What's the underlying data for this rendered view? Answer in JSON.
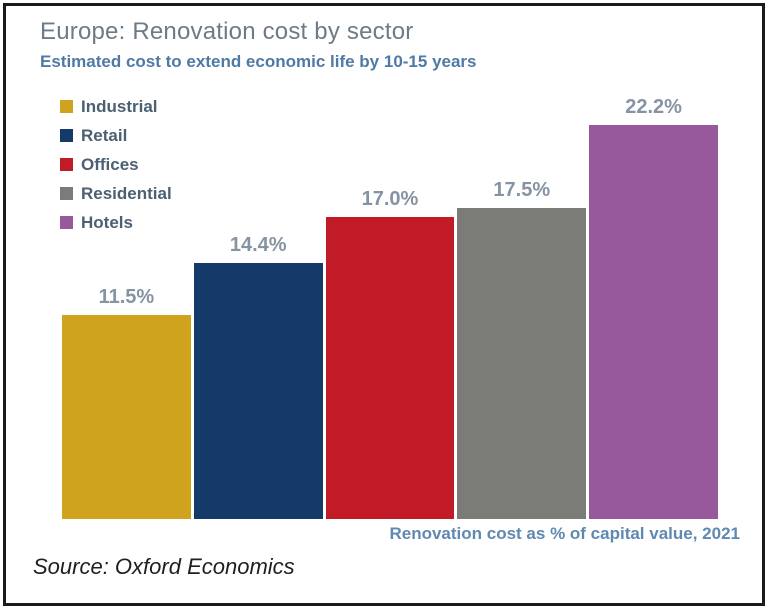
{
  "chart_data": {
    "type": "bar",
    "title": "Europe: Renovation cost by sector",
    "subtitle": "Estimated cost to extend economic life by 10-15 years",
    "categories": [
      "Industrial",
      "Retail",
      "Offices",
      "Residential",
      "Hotels"
    ],
    "values": [
      11.5,
      14.4,
      17.0,
      17.5,
      22.2
    ],
    "value_labels": [
      "11.5%",
      "14.4%",
      "17.0%",
      "17.5%",
      "22.2%"
    ],
    "colors": [
      "#D0A31F",
      "#143A69",
      "#C11B27",
      "#7B7B78",
      "#97599B"
    ],
    "xlabel": "Renovation cost as % of capital value, 2021",
    "ylabel": "",
    "ylim": [
      0,
      24
    ],
    "grid": false,
    "legend_position": "top-left",
    "source": "Source: Oxford Economics"
  },
  "frame": {
    "border_color": "#1a1a1a",
    "title_color": "#6e7b87",
    "subtitle_color": "#4e7aa5",
    "label_color": "#8593a2",
    "axis_note_color": "#5f89b0",
    "legend_text_color": "#4d6073"
  }
}
